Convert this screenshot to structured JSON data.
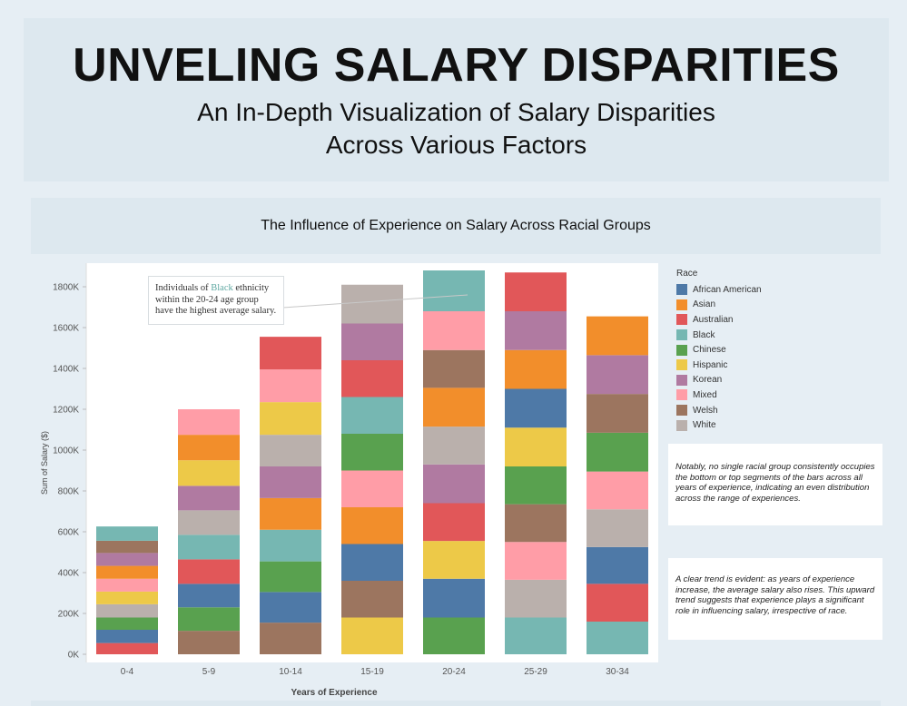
{
  "header": {
    "title": "UNVELING SALARY DISPARITIES",
    "subtitle_line1": "An In-Depth Visualization of Salary Disparities",
    "subtitle_line2": "Across Various Factors"
  },
  "annotation": {
    "prefix": "Individuals of ",
    "highlight": "Black",
    "suffix": " ethnicity within the 20-24 age group have the highest average salary."
  },
  "notes": [
    "Notably, no single racial group consistently occupies the bottom or top segments of the bars across all years of experience, indicating an even distribution across the range of experiences.",
    "A clear trend is evident: as years of experience increase, the average salary also rises. This upward trend suggests that experience plays a significant role in influencing salary, irrespective of race."
  ],
  "colors": {
    "African American": "#4e79a7",
    "Asian": "#f28e2b",
    "Australian": "#e15759",
    "Black": "#76b7b2",
    "Chinese": "#59a14f",
    "Hispanic": "#edc948",
    "Korean": "#b07aa1",
    "Mixed": "#ff9da7",
    "Welsh": "#9c755f",
    "White": "#bab0ac"
  },
  "chart_data": {
    "type": "bar",
    "stacked": true,
    "title": "The Influence of Experience on Salary Across Racial Groups",
    "xlabel": "Years of Experience",
    "ylabel": "Sum of Salary ($)",
    "ylim": [
      0,
      1900000
    ],
    "yticks": [
      0,
      200000,
      400000,
      600000,
      800000,
      1000000,
      1200000,
      1400000,
      1600000,
      1800000
    ],
    "ytick_labels": [
      "0K",
      "200K",
      "400K",
      "600K",
      "800K",
      "1000K",
      "1200K",
      "1400K",
      "1600K",
      "1800K"
    ],
    "legend_title": "Race",
    "legend_position": "right",
    "categories": [
      "0-4",
      "5-9",
      "10-14",
      "15-19",
      "20-24",
      "25-29",
      "30-34"
    ],
    "stacks": [
      [
        {
          "race": "Australian",
          "value": 55000
        },
        {
          "race": "African American",
          "value": 65000
        },
        {
          "race": "Chinese",
          "value": 60000
        },
        {
          "race": "White",
          "value": 65000
        },
        {
          "race": "Hispanic",
          "value": 62000
        },
        {
          "race": "Mixed",
          "value": 63000
        },
        {
          "race": "Asian",
          "value": 63000
        },
        {
          "race": "Korean",
          "value": 63000
        },
        {
          "race": "Welsh",
          "value": 60000
        },
        {
          "race": "Black",
          "value": 70000
        }
      ],
      [
        {
          "race": "Welsh",
          "value": 115000
        },
        {
          "race": "Chinese",
          "value": 115000
        },
        {
          "race": "African American",
          "value": 115000
        },
        {
          "race": "Australian",
          "value": 120000
        },
        {
          "race": "Black",
          "value": 120000
        },
        {
          "race": "White",
          "value": 120000
        },
        {
          "race": "Korean",
          "value": 120000
        },
        {
          "race": "Hispanic",
          "value": 125000
        },
        {
          "race": "Asian",
          "value": 125000
        },
        {
          "race": "Mixed",
          "value": 125000
        }
      ],
      [
        {
          "race": "Welsh",
          "value": 155000
        },
        {
          "race": "African American",
          "value": 150000
        },
        {
          "race": "Chinese",
          "value": 150000
        },
        {
          "race": "Black",
          "value": 155000
        },
        {
          "race": "Asian",
          "value": 155000
        },
        {
          "race": "Korean",
          "value": 155000
        },
        {
          "race": "White",
          "value": 155000
        },
        {
          "race": "Hispanic",
          "value": 160000
        },
        {
          "race": "Mixed",
          "value": 160000
        },
        {
          "race": "Australian",
          "value": 160000
        }
      ],
      [
        {
          "race": "Hispanic",
          "value": 180000
        },
        {
          "race": "Welsh",
          "value": 180000
        },
        {
          "race": "African American",
          "value": 180000
        },
        {
          "race": "Asian",
          "value": 180000
        },
        {
          "race": "Mixed",
          "value": 180000
        },
        {
          "race": "Chinese",
          "value": 180000
        },
        {
          "race": "Black",
          "value": 180000
        },
        {
          "race": "Australian",
          "value": 180000
        },
        {
          "race": "Korean",
          "value": 180000
        },
        {
          "race": "White",
          "value": 190000
        }
      ],
      [
        {
          "race": "Chinese",
          "value": 180000
        },
        {
          "race": "African American",
          "value": 190000
        },
        {
          "race": "Hispanic",
          "value": 185000
        },
        {
          "race": "Australian",
          "value": 185000
        },
        {
          "race": "Korean",
          "value": 190000
        },
        {
          "race": "White",
          "value": 185000
        },
        {
          "race": "Asian",
          "value": 190000
        },
        {
          "race": "Welsh",
          "value": 185000
        },
        {
          "race": "Mixed",
          "value": 190000
        },
        {
          "race": "Black",
          "value": 200000
        }
      ],
      [
        {
          "race": "Black",
          "value": 180000
        },
        {
          "race": "White",
          "value": 185000
        },
        {
          "race": "Mixed",
          "value": 185000
        },
        {
          "race": "Welsh",
          "value": 185000
        },
        {
          "race": "Chinese",
          "value": 185000
        },
        {
          "race": "Hispanic",
          "value": 190000
        },
        {
          "race": "African American",
          "value": 190000
        },
        {
          "race": "Asian",
          "value": 190000
        },
        {
          "race": "Korean",
          "value": 190000
        },
        {
          "race": "Australian",
          "value": 190000
        }
      ],
      [
        {
          "race": "Black",
          "value": 160000
        },
        {
          "race": "Australian",
          "value": 185000
        },
        {
          "race": "African American",
          "value": 180000
        },
        {
          "race": "White",
          "value": 185000
        },
        {
          "race": "Mixed",
          "value": 185000
        },
        {
          "race": "Chinese",
          "value": 190000
        },
        {
          "race": "Welsh",
          "value": 190000
        },
        {
          "race": "Korean",
          "value": 190000
        },
        {
          "race": "Asian",
          "value": 190000
        }
      ]
    ],
    "series": [
      {
        "name": "African American",
        "values": [
          65000,
          115000,
          150000,
          180000,
          190000,
          190000,
          180000
        ]
      },
      {
        "name": "Asian",
        "values": [
          63000,
          125000,
          155000,
          180000,
          190000,
          190000,
          190000
        ]
      },
      {
        "name": "Australian",
        "values": [
          55000,
          120000,
          160000,
          180000,
          185000,
          190000,
          185000
        ]
      },
      {
        "name": "Black",
        "values": [
          70000,
          120000,
          155000,
          180000,
          200000,
          180000,
          160000
        ]
      },
      {
        "name": "Chinese",
        "values": [
          60000,
          115000,
          150000,
          180000,
          180000,
          185000,
          190000
        ]
      },
      {
        "name": "Hispanic",
        "values": [
          62000,
          125000,
          160000,
          180000,
          185000,
          190000,
          0
        ]
      },
      {
        "name": "Korean",
        "values": [
          63000,
          120000,
          155000,
          180000,
          190000,
          190000,
          190000
        ]
      },
      {
        "name": "Mixed",
        "values": [
          63000,
          125000,
          160000,
          180000,
          190000,
          185000,
          185000
        ]
      },
      {
        "name": "Welsh",
        "values": [
          60000,
          115000,
          155000,
          180000,
          185000,
          185000,
          190000
        ]
      },
      {
        "name": "White",
        "values": [
          65000,
          120000,
          155000,
          190000,
          185000,
          185000,
          185000
        ]
      }
    ]
  }
}
